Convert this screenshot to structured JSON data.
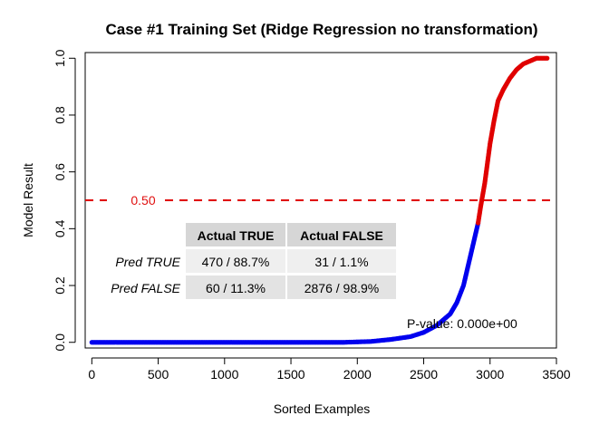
{
  "chart_data": {
    "type": "scatter",
    "title": "Case #1 Training Set (Ridge Regression no transformation)",
    "xlabel": "Sorted Examples",
    "ylabel": "Model Result",
    "xlim": [
      -50,
      3500
    ],
    "ylim": [
      -0.02,
      1.02
    ],
    "x_ticks": [
      0,
      500,
      1000,
      1500,
      2000,
      2500,
      3000,
      3500
    ],
    "y_ticks": [
      0.0,
      0.2,
      0.4,
      0.6,
      0.8,
      1.0
    ],
    "x_tick_labels": [
      "0",
      "500",
      "1000",
      "1500",
      "2000",
      "2500",
      "3000",
      "3500"
    ],
    "y_tick_labels": [
      "0.0",
      "0.2",
      "0.4",
      "0.6",
      "0.8",
      "1.0"
    ],
    "grid": false,
    "series": [
      {
        "name": "",
        "color": "#0000ee",
        "points": [
          [
            0,
            0.0
          ],
          [
            500,
            0.0
          ],
          [
            1000,
            0.0
          ],
          [
            1500,
            0.0
          ],
          [
            1900,
            0.0
          ],
          [
            2100,
            0.003
          ],
          [
            2250,
            0.01
          ],
          [
            2400,
            0.02
          ],
          [
            2500,
            0.035
          ],
          [
            2600,
            0.06
          ],
          [
            2700,
            0.1
          ],
          [
            2750,
            0.14
          ],
          [
            2800,
            0.2
          ],
          [
            2850,
            0.3
          ],
          [
            2880,
            0.36
          ],
          [
            2910,
            0.42
          ]
        ]
      },
      {
        "name": "",
        "color": "#e00000",
        "points": [
          [
            2910,
            0.42
          ],
          [
            2930,
            0.48
          ],
          [
            2960,
            0.56
          ],
          [
            3000,
            0.7
          ],
          [
            3030,
            0.78
          ],
          [
            3060,
            0.85
          ],
          [
            3100,
            0.89
          ],
          [
            3150,
            0.93
          ],
          [
            3200,
            0.96
          ],
          [
            3250,
            0.98
          ],
          [
            3300,
            0.99
          ],
          [
            3350,
            1.0
          ],
          [
            3430,
            1.0
          ]
        ]
      }
    ],
    "threshold": {
      "value": 0.5,
      "label": "0.50",
      "color": "#e00000",
      "style": "dashed"
    },
    "annotation": {
      "text": "P-value: 0.000e+00"
    },
    "confusion_matrix": {
      "col_headers": [
        "Actual TRUE",
        "Actual FALSE"
      ],
      "rows": [
        {
          "label": "Pred TRUE",
          "cells": [
            "470 / 88.7%",
            "31 / 1.1%"
          ]
        },
        {
          "label": "Pred FALSE",
          "cells": [
            "60 / 11.3%",
            "2876 / 98.9%"
          ]
        }
      ]
    }
  }
}
